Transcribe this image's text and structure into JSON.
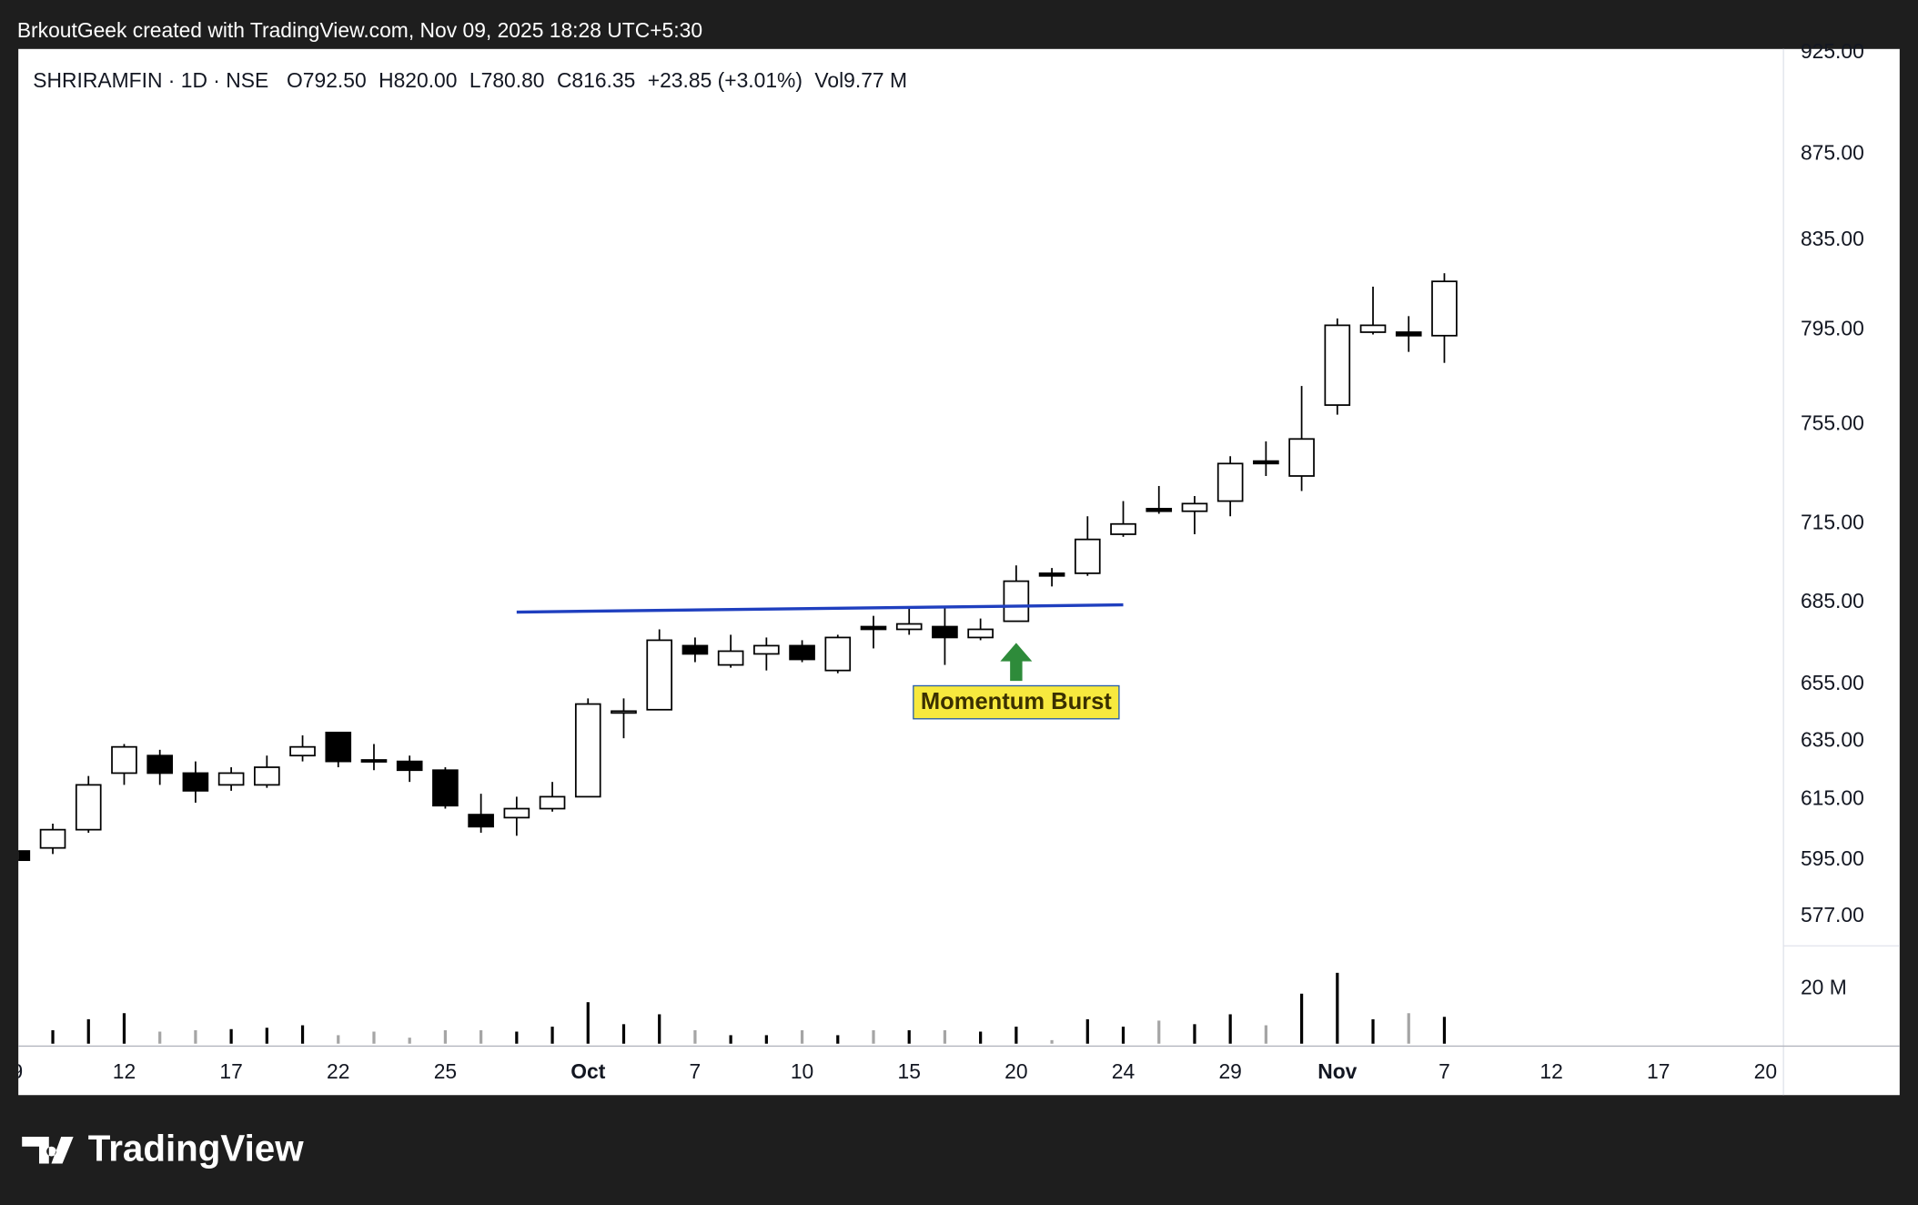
{
  "watermark": "BrkoutGeek created with TradingView.com, Nov 09, 2025 18:28 UTC+5:30",
  "brand": "TradingView",
  "chart_data": {
    "type": "candlestick",
    "title": "SHRIRAMFIN · 1D · NSE",
    "ohlc_legend": [
      "O792.50",
      "H820.00",
      "L780.80",
      "C816.35",
      "+23.85 (+3.01%)",
      "Vol9.77 M"
    ],
    "categories": [
      "9",
      null,
      null,
      "12",
      null,
      null,
      "17",
      null,
      null,
      "22",
      null,
      null,
      "25",
      null,
      null,
      null,
      "Oct",
      null,
      null,
      "7",
      null,
      null,
      "10",
      null,
      null,
      "15",
      null,
      null,
      "20",
      null,
      null,
      "24",
      null,
      null,
      "29",
      null,
      null,
      "Nov",
      null,
      null,
      "7",
      null,
      null,
      "12",
      null,
      null,
      "17",
      null,
      null,
      "20"
    ],
    "open": [
      598,
      599,
      605,
      624,
      630,
      624,
      620,
      620,
      630,
      638,
      628.5,
      628,
      625,
      610,
      609,
      612,
      616,
      645,
      646,
      669,
      662,
      666,
      669,
      660,
      676,
      675,
      676,
      672,
      678,
      696,
      696,
      711,
      721,
      720,
      724,
      740,
      734,
      763,
      794,
      794,
      792.5,
      null,
      null,
      null,
      null,
      null,
      null,
      null,
      null,
      null
    ],
    "high": [
      599,
      607,
      623,
      634,
      632,
      628,
      626,
      630,
      637,
      638,
      634,
      630,
      626,
      617,
      616,
      621,
      650,
      650,
      675,
      672,
      673,
      672,
      671,
      673,
      680,
      683,
      683,
      679,
      699,
      698,
      718,
      724,
      730,
      726,
      742,
      748,
      771,
      800,
      814,
      801,
      820,
      null,
      null,
      null,
      null,
      null,
      null,
      null,
      null,
      null
    ],
    "low": [
      594,
      597,
      604,
      620,
      620,
      614,
      618,
      619,
      628,
      626,
      625,
      621,
      612,
      604,
      603,
      611,
      616,
      636,
      646,
      663,
      661,
      660,
      663,
      659,
      668,
      673,
      662,
      671,
      678,
      691,
      695,
      710,
      719,
      711,
      718,
      734,
      728,
      759,
      793,
      785.5,
      780.8,
      null,
      null,
      null,
      null,
      null,
      null,
      null,
      null,
      null
    ],
    "close": [
      595,
      605,
      620,
      633,
      624,
      618,
      624,
      626,
      633,
      628,
      628,
      625,
      613,
      606,
      612,
      616,
      648,
      645.5,
      671,
      666,
      667,
      669,
      664,
      672,
      675,
      677,
      672,
      675,
      693,
      695,
      709,
      715,
      720,
      723,
      739,
      739,
      749,
      797,
      797,
      792.5,
      816.35,
      null,
      null,
      null,
      null,
      null,
      null,
      null,
      null,
      null
    ],
    "volume": [
      null,
      4.9,
      8.9,
      11.1,
      4.4,
      4.9,
      5.3,
      5.8,
      6.7,
      3.1,
      4.4,
      2.2,
      4.9,
      4.9,
      4.4,
      6.2,
      15.1,
      7.1,
      10.7,
      4.9,
      3.1,
      3.1,
      4.9,
      3.1,
      4.9,
      4.9,
      4.9,
      4.4,
      6.2,
      1.3,
      8.9,
      6.2,
      8.4,
      7.1,
      10.7,
      6.7,
      18.2,
      25.8,
      8.9,
      11.1,
      9.77,
      null,
      null,
      null,
      null,
      null,
      null,
      null,
      null,
      null
    ],
    "ylim": [
      567.8,
      926.9
    ],
    "log_scale": true,
    "grid": false,
    "yticks": [
      {
        "value": 925,
        "label": "925.00"
      },
      {
        "value": 875,
        "label": "875.00"
      },
      {
        "value": 835,
        "label": "835.00"
      },
      {
        "value": 795,
        "label": "795.00"
      },
      {
        "value": 755,
        "label": "755.00"
      },
      {
        "value": 715,
        "label": "715.00"
      },
      {
        "value": 685,
        "label": "685.00"
      },
      {
        "value": 655,
        "label": "655.00"
      },
      {
        "value": 635,
        "label": "635.00"
      },
      {
        "value": 615,
        "label": "615.00"
      },
      {
        "value": 595,
        "label": "595.00"
      },
      {
        "value": 577,
        "label": "577.00"
      }
    ],
    "volume_lim": [
      0,
      35.6
    ],
    "volume_ticks": [
      {
        "value": 20,
        "label": "20 M"
      }
    ],
    "up_color": "#ffffff",
    "down_color": "#000000",
    "volume_up_color": "#000000",
    "volume_down_color": "#a5a5a5",
    "trendline": {
      "x": [
        14,
        31
      ],
      "y": [
        681.4,
        684.1
      ],
      "color": "#1f3fbf"
    },
    "annotation": {
      "text": "Momentum Burst",
      "x": 28,
      "y": 670,
      "color": "#f7e93e",
      "arrow_color": "#2e8b3a"
    }
  }
}
